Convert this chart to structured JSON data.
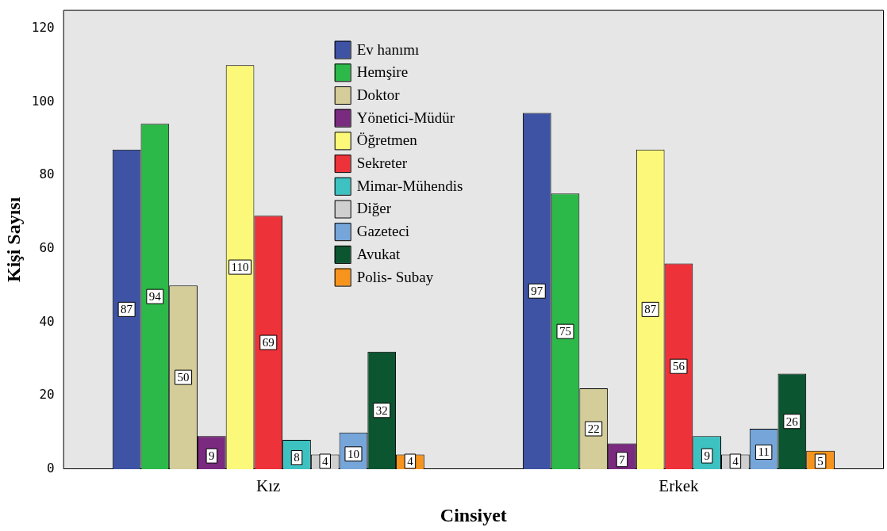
{
  "chart_data": {
    "type": "bar",
    "xlabel": "Cinsiyet",
    "ylabel": "Kişi Sayısı",
    "categories": [
      "Kız",
      "Erkek"
    ],
    "series": [
      {
        "name": "Ev hanımı",
        "color": "#3e53a4",
        "values": [
          87,
          97
        ]
      },
      {
        "name": "Hemşire",
        "color": "#2db84a",
        "values": [
          94,
          75
        ]
      },
      {
        "name": "Doktor",
        "color": "#d4cc99",
        "values": [
          50,
          22
        ]
      },
      {
        "name": "Yönetici-Müdür",
        "color": "#7a2a7f",
        "values": [
          9,
          7
        ]
      },
      {
        "name": "Öğretmen",
        "color": "#fbf87a",
        "values": [
          110,
          87
        ]
      },
      {
        "name": "Sekreter",
        "color": "#ee3239",
        "values": [
          69,
          56
        ]
      },
      {
        "name": "Mimar-Mühendis",
        "color": "#3ec1c1",
        "values": [
          8,
          9
        ]
      },
      {
        "name": "Diğer",
        "color": "#cfcfcf",
        "values": [
          4,
          4
        ]
      },
      {
        "name": "Gazeteci",
        "color": "#76a6d9",
        "values": [
          10,
          11
        ]
      },
      {
        "name": "Avukat",
        "color": "#0b5530",
        "values": [
          32,
          26
        ]
      },
      {
        "name": "Polis- Subay",
        "color": "#f7941d",
        "values": [
          4,
          5
        ]
      }
    ],
    "ylim": [
      0,
      125
    ],
    "yticks": [
      0,
      20,
      40,
      60,
      80,
      100,
      120
    ],
    "grid": false,
    "legend": "top",
    "data_labels": true
  }
}
